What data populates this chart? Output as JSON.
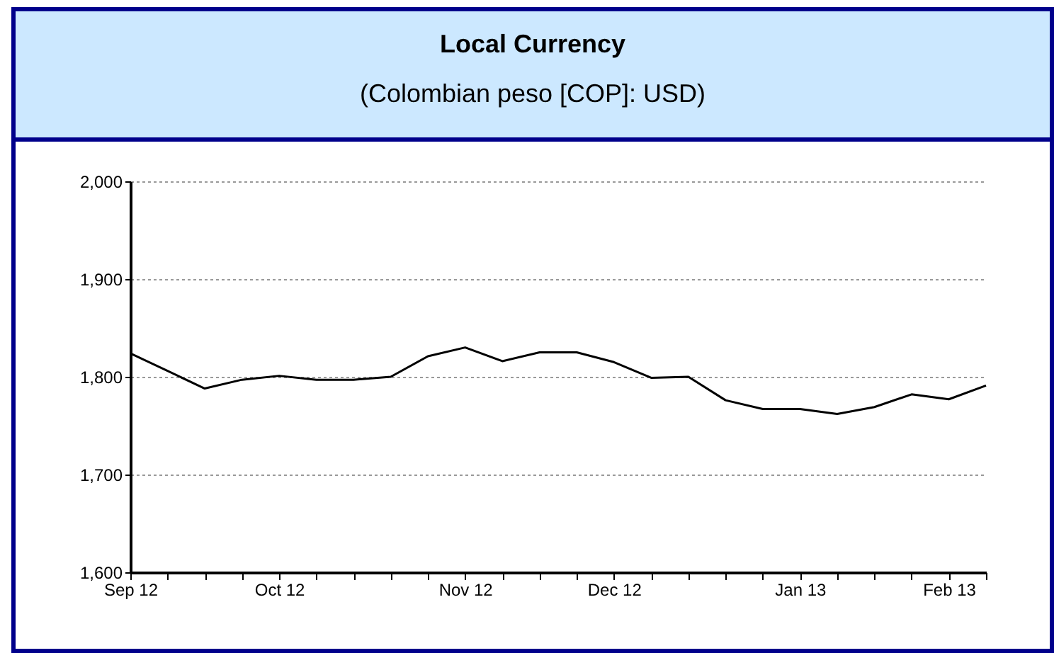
{
  "chart_data": {
    "type": "line",
    "title": "Local Currency",
    "subtitle": "(Colombian peso [COP]: USD)",
    "categories": [
      "Sep 12",
      null,
      null,
      null,
      "Oct 12",
      null,
      null,
      null,
      null,
      "Nov 12",
      null,
      null,
      null,
      "Dec 12",
      null,
      null,
      null,
      null,
      "Jan 13",
      null,
      null,
      null,
      "Feb 13",
      null
    ],
    "series": [
      {
        "color": "#000000",
        "values": [
          1824,
          1806,
          1788,
          1797,
          1801,
          1797,
          1797,
          1800,
          1821,
          1830,
          1816,
          1825,
          1825,
          1815,
          1799,
          1800,
          1776,
          1767,
          1767,
          1762,
          1769,
          1782,
          1777,
          1791
        ]
      }
    ],
    "ylim": [
      1600,
      2000
    ],
    "yticks": [
      {
        "value": 1600,
        "label": "1,600"
      },
      {
        "value": 1700,
        "label": "1,700"
      },
      {
        "value": 1800,
        "label": "1,800"
      },
      {
        "value": 1900,
        "label": "1,900"
      },
      {
        "value": 2000,
        "label": "2,000"
      }
    ],
    "grid": "y",
    "legend": false,
    "marker": "none",
    "line_style": "solid"
  }
}
